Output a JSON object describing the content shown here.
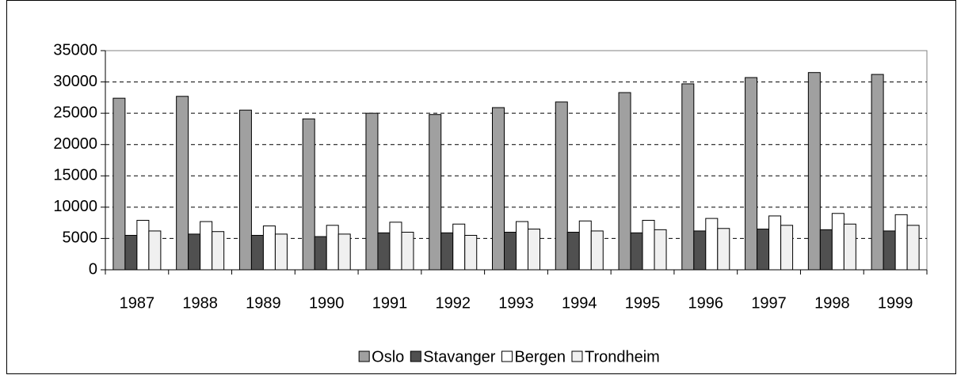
{
  "chart_data": {
    "type": "bar",
    "categories": [
      "1987",
      "1988",
      "1989",
      "1990",
      "1991",
      "1992",
      "1993",
      "1994",
      "1995",
      "1996",
      "1997",
      "1998",
      "1999"
    ],
    "series": [
      {
        "name": "Oslo",
        "color": "#a0a0a0",
        "values": [
          27400,
          27700,
          25500,
          24100,
          25000,
          24800,
          25900,
          26800,
          28300,
          29700,
          30700,
          31500,
          31200
        ]
      },
      {
        "name": "Stavanger",
        "color": "#505050",
        "values": [
          5500,
          5700,
          5500,
          5300,
          5900,
          5900,
          6000,
          6000,
          5900,
          6200,
          6500,
          6400,
          6200
        ]
      },
      {
        "name": "Bergen",
        "color": "#ffffff",
        "values": [
          7900,
          7700,
          7000,
          7100,
          7600,
          7300,
          7700,
          7800,
          7900,
          8200,
          8600,
          9000,
          8800
        ]
      },
      {
        "name": "Trondheim",
        "color": "#f0f0f0",
        "values": [
          6200,
          6100,
          5700,
          5700,
          6000,
          5500,
          6500,
          6200,
          6400,
          6600,
          7100,
          7300,
          7100
        ]
      }
    ],
    "ylim": [
      0,
      35000
    ],
    "yticks": [
      0,
      5000,
      10000,
      15000,
      20000,
      25000,
      30000,
      35000
    ],
    "grid": true,
    "legend": "bottom"
  }
}
